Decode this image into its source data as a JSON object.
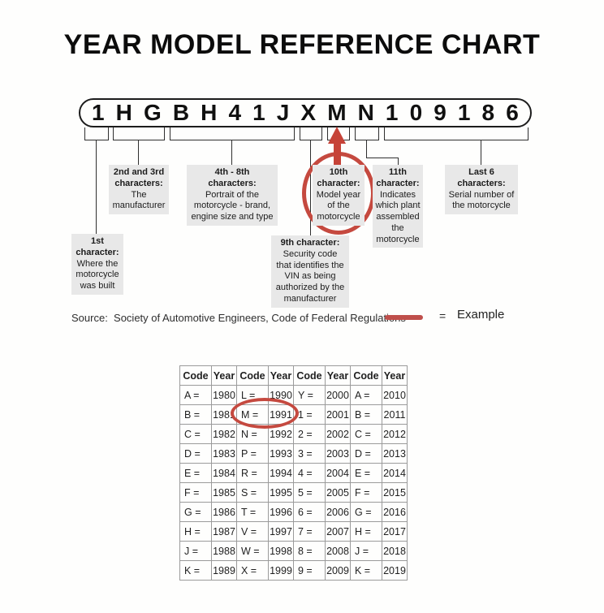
{
  "title": "YEAR MODEL REFERENCE CHART",
  "vin": {
    "characters": [
      "1",
      "H",
      "G",
      "B",
      "H",
      "4",
      "1",
      "J",
      "X",
      "M",
      "N",
      "1",
      "0",
      "9",
      "1",
      "8",
      "6"
    ]
  },
  "callouts": {
    "first": {
      "heading": "1st character:",
      "body": "Where the motorcycle was built"
    },
    "second_third": {
      "heading": "2nd and 3rd characters:",
      "body": "The manufacturer"
    },
    "fourth_eighth": {
      "heading": "4th - 8th characters:",
      "body": "Portrait of the motorcycle - brand, engine size and type"
    },
    "ninth": {
      "heading": "9th character:",
      "body": "Security code that identifies the VIN as being authorized by the manufacturer"
    },
    "tenth": {
      "heading": "10th character:",
      "body": "Model year of the motorcycle"
    },
    "eleventh": {
      "heading": "11th character:",
      "body": "Indicates which plant assembled the motorcycle"
    },
    "last_six": {
      "heading": "Last 6 characters:",
      "body": "Serial number of the motorcycle"
    }
  },
  "legend": {
    "source": "Source:  Society of Automotive Engineers, Code of Federal Regulations",
    "equals": "=",
    "example": "Example"
  },
  "table": {
    "headers": [
      "Code",
      "Year",
      "Code",
      "Year",
      "Code",
      "Year",
      "Code",
      "Year"
    ],
    "rows": [
      [
        "A =",
        "1980",
        "L =",
        "1990",
        "Y =",
        "2000",
        "A =",
        "2010"
      ],
      [
        "B =",
        "1981",
        "M =",
        "1991",
        "1 =",
        "2001",
        "B =",
        "2011"
      ],
      [
        "C =",
        "1982",
        "N =",
        "1992",
        "2 =",
        "2002",
        "C =",
        "2012"
      ],
      [
        "D =",
        "1983",
        "P =",
        "1993",
        "3 =",
        "2003",
        "D =",
        "2013"
      ],
      [
        "E =",
        "1984",
        "R =",
        "1994",
        "4 =",
        "2004",
        "E =",
        "2014"
      ],
      [
        "F =",
        "1985",
        "S =",
        "1995",
        "5 =",
        "2005",
        "F =",
        "2015"
      ],
      [
        "G =",
        "1986",
        "T =",
        "1996",
        "6 =",
        "2006",
        "G =",
        "2016"
      ],
      [
        "H =",
        "1987",
        "V =",
        "1997",
        "7 =",
        "2007",
        "H =",
        "2017"
      ],
      [
        "J =",
        "1988",
        "W =",
        "1998",
        "8 =",
        "2008",
        "J =",
        "2018"
      ],
      [
        "K =",
        "1989",
        "X =",
        "1999",
        "9 =",
        "2009",
        "K =",
        "2019"
      ]
    ],
    "highlighted_cell": "M = 1991"
  },
  "colors": {
    "accent_red": "#c5493f",
    "callout_bg": "#e8e8e8",
    "line_color": "#2f2f2f"
  }
}
